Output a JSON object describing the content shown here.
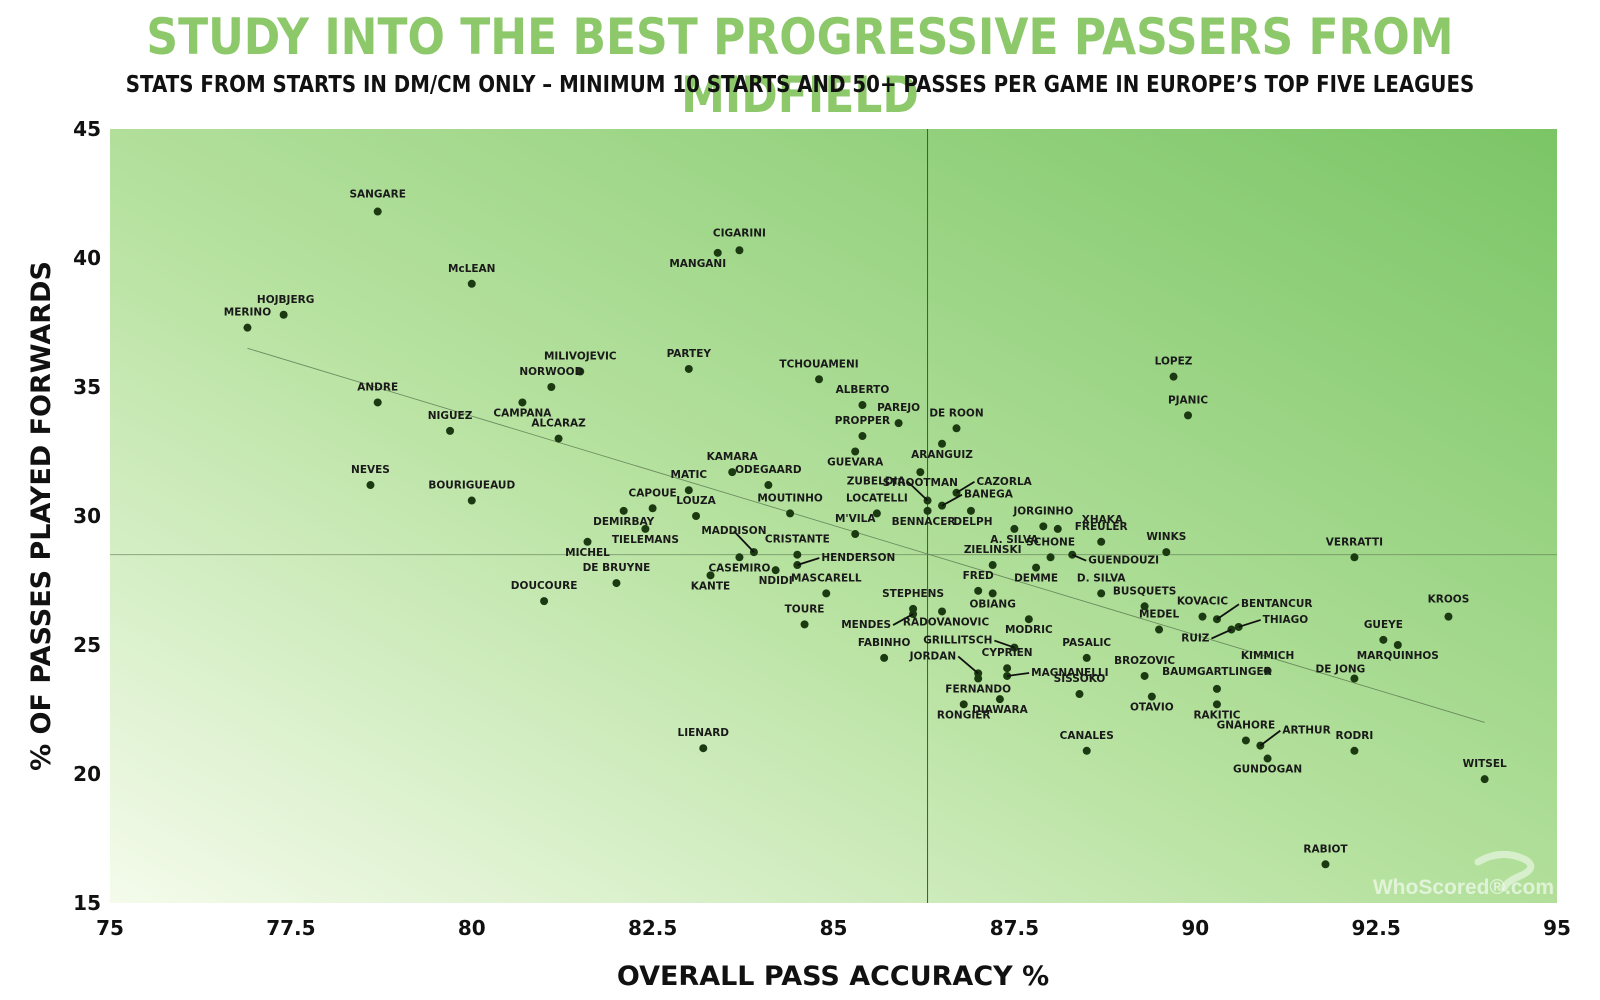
{
  "page": {
    "title": "STUDY INTO THE BEST PROGRESSIVE PASSERS FROM MIDFIELD",
    "subtitle": "STATS FROM STARTS IN DM/CM ONLY – MINIMUM 10 STARTS AND 50+ PASSES PER GAME IN EUROPE’S TOP FIVE LEAGUES",
    "watermark": "WhoScored®.com",
    "colors": {
      "title": "#8dc96b",
      "point": "#1b3a12",
      "bg_light": "#f3fbe9",
      "bg_dark": "#7cc568"
    }
  },
  "chart_data": {
    "type": "scatter",
    "title": "STUDY INTO THE BEST PROGRESSIVE PASSERS FROM MIDFIELD",
    "xlabel": "OVERALL PASS ACCURACY %",
    "ylabel": "% OF PASSES PLAYED FORWARDS",
    "xlim": [
      75,
      95
    ],
    "ylim": [
      15,
      45
    ],
    "xticks": [
      75,
      77.5,
      80,
      82.5,
      85,
      87.5,
      90,
      92.5,
      95
    ],
    "xtick_labels": [
      "75",
      "77.5",
      "80",
      "82.5",
      "85",
      "87.5",
      "90",
      "92.5",
      "95"
    ],
    "yticks": [
      15,
      20,
      25,
      30,
      35,
      40,
      45
    ],
    "ytick_labels": [
      "15",
      "20",
      "25",
      "30",
      "35",
      "40",
      "45"
    ],
    "reference_lines": {
      "x_mean": 86.3,
      "y_mean": 28.5
    },
    "trendline": {
      "x": [
        76.9,
        94.0
      ],
      "y": [
        36.5,
        22.0
      ]
    },
    "points": [
      {
        "name": "SANGARE",
        "x": 78.7,
        "y": 41.8
      },
      {
        "name": "CIGARINI",
        "x": 83.7,
        "y": 40.3
      },
      {
        "name": "MANGANI",
        "x": 83.4,
        "y": 40.2
      },
      {
        "name": "McLEAN",
        "x": 80.0,
        "y": 39.0
      },
      {
        "name": "HOJBJERG",
        "x": 77.4,
        "y": 37.8
      },
      {
        "name": "MERINO",
        "x": 76.9,
        "y": 37.3
      },
      {
        "name": "MILIVOJEVIC",
        "x": 81.5,
        "y": 35.6
      },
      {
        "name": "PARTEY",
        "x": 83.0,
        "y": 35.7
      },
      {
        "name": "TCHOUAMENI",
        "x": 84.8,
        "y": 35.3
      },
      {
        "name": "LOPEZ",
        "x": 89.7,
        "y": 35.4
      },
      {
        "name": "NORWOOD",
        "x": 81.1,
        "y": 35.0
      },
      {
        "name": "ANDRE",
        "x": 78.7,
        "y": 34.4
      },
      {
        "name": "CAMPANA",
        "x": 80.7,
        "y": 34.4
      },
      {
        "name": "ALBERTO",
        "x": 85.4,
        "y": 34.3
      },
      {
        "name": "PJANIC",
        "x": 89.9,
        "y": 33.9
      },
      {
        "name": "PAREJO",
        "x": 85.9,
        "y": 33.6
      },
      {
        "name": "NIGUEZ",
        "x": 79.7,
        "y": 33.3
      },
      {
        "name": "ALCARAZ",
        "x": 81.2,
        "y": 33.0
      },
      {
        "name": "PROPPER",
        "x": 85.4,
        "y": 33.1
      },
      {
        "name": "DE ROON",
        "x": 86.7,
        "y": 33.4
      },
      {
        "name": "ARANGUIZ",
        "x": 86.5,
        "y": 32.8
      },
      {
        "name": "GUEVARA",
        "x": 85.3,
        "y": 32.5
      },
      {
        "name": "KAMARA",
        "x": 83.6,
        "y": 31.7
      },
      {
        "name": "STROOTMAN",
        "x": 86.2,
        "y": 31.7
      },
      {
        "name": "NEVES",
        "x": 78.6,
        "y": 31.2
      },
      {
        "name": "MATIC",
        "x": 83.0,
        "y": 31.0
      },
      {
        "name": "ODEGAARD",
        "x": 84.1,
        "y": 31.2
      },
      {
        "name": "CAZORLA",
        "x": 86.7,
        "y": 30.9
      },
      {
        "name": "ZUBELDIA",
        "x": 86.3,
        "y": 30.6
      },
      {
        "name": "BANEGA",
        "x": 86.5,
        "y": 30.4
      },
      {
        "name": "BOURIGUEAUD",
        "x": 80.0,
        "y": 30.6
      },
      {
        "name": "CAPOUE",
        "x": 82.5,
        "y": 30.3
      },
      {
        "name": "LOCATELLI",
        "x": 85.6,
        "y": 30.1
      },
      {
        "name": "BENNACER",
        "x": 86.3,
        "y": 30.2
      },
      {
        "name": "DELPH",
        "x": 86.9,
        "y": 30.2
      },
      {
        "name": "LOUZA",
        "x": 83.1,
        "y": 30.0
      },
      {
        "name": "MOUTINHO",
        "x": 84.4,
        "y": 30.1
      },
      {
        "name": "DEMIRBAY",
        "x": 82.1,
        "y": 30.2
      },
      {
        "name": "JORGINHO",
        "x": 87.9,
        "y": 29.6
      },
      {
        "name": "XHAKA",
        "x": 88.1,
        "y": 29.5
      },
      {
        "name": "A. SILVA",
        "x": 87.5,
        "y": 29.5
      },
      {
        "name": "TIELEMANS",
        "x": 82.4,
        "y": 29.5
      },
      {
        "name": "M'VILA",
        "x": 85.3,
        "y": 29.3
      },
      {
        "name": "MADDISON",
        "x": 83.9,
        "y": 28.6
      },
      {
        "name": "FREULER",
        "x": 88.7,
        "y": 29.0
      },
      {
        "name": "MICHEL",
        "x": 81.6,
        "y": 29.0
      },
      {
        "name": "CRISTANTE",
        "x": 84.5,
        "y": 28.5
      },
      {
        "name": "WINKS",
        "x": 89.6,
        "y": 28.6
      },
      {
        "name": "VERRATTI",
        "x": 92.2,
        "y": 28.4
      },
      {
        "name": "SCHONE",
        "x": 88.0,
        "y": 28.4
      },
      {
        "name": "GUENDOUZI",
        "x": 88.3,
        "y": 28.5
      },
      {
        "name": "ZIELINSKI",
        "x": 87.2,
        "y": 28.1
      },
      {
        "name": "HENDERSON",
        "x": 84.5,
        "y": 28.1
      },
      {
        "name": "CASEMIRO",
        "x": 83.7,
        "y": 28.4
      },
      {
        "name": "NDIDI",
        "x": 84.2,
        "y": 27.9
      },
      {
        "name": "DEMME",
        "x": 87.8,
        "y": 28.0
      },
      {
        "name": "KANTE",
        "x": 83.3,
        "y": 27.7
      },
      {
        "name": "DE BRUYNE",
        "x": 82.0,
        "y": 27.4
      },
      {
        "name": "MASCARELL",
        "x": 84.9,
        "y": 27.0
      },
      {
        "name": "FRED",
        "x": 87.0,
        "y": 27.1
      },
      {
        "name": "D. SILVA",
        "x": 88.7,
        "y": 27.0
      },
      {
        "name": "OBIANG",
        "x": 87.2,
        "y": 27.0
      },
      {
        "name": "DOUCOURE",
        "x": 81.0,
        "y": 26.7
      },
      {
        "name": "BUSQUETS",
        "x": 89.3,
        "y": 26.5
      },
      {
        "name": "KROOS",
        "x": 93.5,
        "y": 26.1
      },
      {
        "name": "STEPHENS",
        "x": 86.1,
        "y": 26.4
      },
      {
        "name": "MENDES",
        "x": 86.1,
        "y": 26.2
      },
      {
        "name": "RADOVANOVIC",
        "x": 86.5,
        "y": 26.3
      },
      {
        "name": "KOVACIC",
        "x": 90.1,
        "y": 26.1
      },
      {
        "name": "BENTANCUR",
        "x": 90.3,
        "y": 26.0
      },
      {
        "name": "TOURE",
        "x": 84.6,
        "y": 25.8
      },
      {
        "name": "MODRIC",
        "x": 87.7,
        "y": 26.0
      },
      {
        "name": "MEDEL",
        "x": 89.5,
        "y": 25.6
      },
      {
        "name": "THIAGO",
        "x": 90.6,
        "y": 25.7
      },
      {
        "name": "RUIZ",
        "x": 90.5,
        "y": 25.6
      },
      {
        "name": "GUEYE",
        "x": 92.6,
        "y": 25.2
      },
      {
        "name": "MARQUINHOS",
        "x": 92.8,
        "y": 25.0
      },
      {
        "name": "GRILLITSCH",
        "x": 87.5,
        "y": 24.9
      },
      {
        "name": "FABINHO",
        "x": 85.7,
        "y": 24.5
      },
      {
        "name": "PASALIC",
        "x": 88.5,
        "y": 24.5
      },
      {
        "name": "CYPRIEN",
        "x": 87.4,
        "y": 24.1
      },
      {
        "name": "KIMMICH",
        "x": 91.0,
        "y": 24.0
      },
      {
        "name": "JORDAN",
        "x": 87.0,
        "y": 23.9
      },
      {
        "name": "MAGNANELLI",
        "x": 87.4,
        "y": 23.8
      },
      {
        "name": "BROZOVIC",
        "x": 89.3,
        "y": 23.8
      },
      {
        "name": "DE JONG",
        "x": 92.2,
        "y": 23.7
      },
      {
        "name": "BAUMGARTLINGER",
        "x": 90.3,
        "y": 23.3
      },
      {
        "name": "FERNANDO",
        "x": 87.0,
        "y": 23.7
      },
      {
        "name": "SISSOKO",
        "x": 88.4,
        "y": 23.1
      },
      {
        "name": "DIAWARA",
        "x": 87.3,
        "y": 22.9
      },
      {
        "name": "OTAVIO",
        "x": 89.4,
        "y": 23.0
      },
      {
        "name": "RONGIER",
        "x": 86.8,
        "y": 22.7
      },
      {
        "name": "RAKITIC",
        "x": 90.3,
        "y": 22.7
      },
      {
        "name": "GNAHORE",
        "x": 90.7,
        "y": 21.3
      },
      {
        "name": "ARTHUR",
        "x": 90.9,
        "y": 21.1
      },
      {
        "name": "LIENARD",
        "x": 83.2,
        "y": 21.0
      },
      {
        "name": "CANALES",
        "x": 88.5,
        "y": 20.9
      },
      {
        "name": "RODRI",
        "x": 92.2,
        "y": 20.9
      },
      {
        "name": "GUNDOGAN",
        "x": 91.0,
        "y": 20.6
      },
      {
        "name": "WITSEL",
        "x": 94.0,
        "y": 19.8
      },
      {
        "name": "RABIOT",
        "x": 91.8,
        "y": 16.5
      }
    ]
  }
}
